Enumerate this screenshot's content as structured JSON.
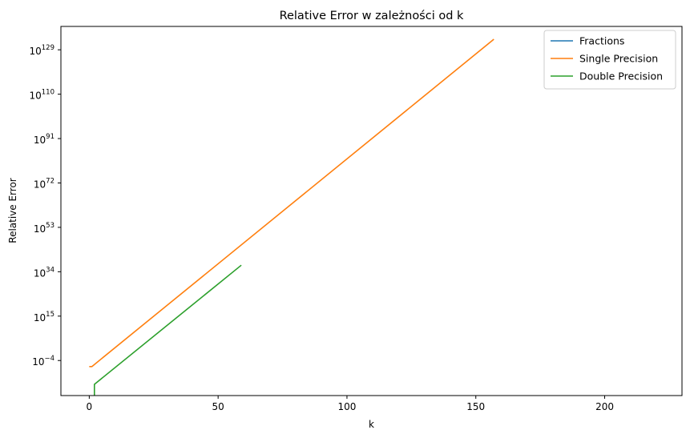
{
  "chart_data": {
    "type": "line",
    "title": "Relative Error w zależności od k",
    "xlabel": "k",
    "ylabel": "Relative Error",
    "xlim": [
      -11,
      230
    ],
    "x_ticks": [
      0,
      50,
      100,
      150,
      200
    ],
    "yscale": "log",
    "ylim_exp": [
      -19,
      139
    ],
    "y_ticks_exp": [
      -4,
      15,
      34,
      53,
      72,
      91,
      110,
      129
    ],
    "y_tick_base": "10",
    "legend_position": "top-right",
    "grid": false,
    "series": [
      {
        "name": "Fractions",
        "color": "#1f77b4",
        "points": []
      },
      {
        "name": "Single Precision",
        "color": "#ff7f0e",
        "points": [
          [
            0,
            -6.6
          ],
          [
            1,
            -6.6
          ],
          [
            157,
            133.5
          ]
        ]
      },
      {
        "name": "Double Precision",
        "color": "#2ca02c",
        "points": [
          [
            2,
            -19.5
          ],
          [
            2,
            -14.2
          ],
          [
            59,
            36.8
          ]
        ]
      }
    ]
  }
}
